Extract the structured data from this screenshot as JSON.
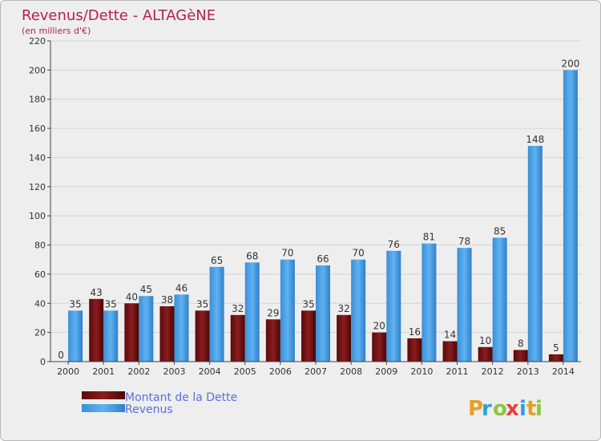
{
  "chart_data": {
    "type": "bar",
    "title": "Revenus/Dette - ALTAGèNE",
    "subtitle": "(en milliers d'€)",
    "categories": [
      "2000",
      "2001",
      "2002",
      "2003",
      "2004",
      "2005",
      "2006",
      "2007",
      "2008",
      "2009",
      "2010",
      "2011",
      "2012",
      "2013",
      "2014"
    ],
    "series": [
      {
        "name": "Montant de la Dette",
        "values": [
          0,
          43,
          40,
          38,
          35,
          32,
          29,
          35,
          32,
          20,
          16,
          14,
          10,
          8,
          5
        ],
        "color": "#7a1416"
      },
      {
        "name": "Revenus",
        "values": [
          35,
          35,
          45,
          46,
          65,
          68,
          70,
          66,
          70,
          76,
          81,
          78,
          85,
          148,
          200
        ],
        "color": "#4aa3e8"
      }
    ],
    "ylim": [
      0,
      220
    ],
    "yticks": [
      0,
      20,
      40,
      60,
      80,
      100,
      120,
      140,
      160,
      180,
      200,
      220
    ],
    "grid": true,
    "legend_position": "bottom-left"
  },
  "logo": {
    "text": "Proxiti",
    "letters": [
      "P",
      "r",
      "o",
      "x",
      "i",
      "t",
      "i"
    ],
    "colors": [
      "#e8a020",
      "#2e9fd8",
      "#8bc540",
      "#e83e3e",
      "#2e9fd8",
      "#e8a020",
      "#8bc540"
    ]
  }
}
